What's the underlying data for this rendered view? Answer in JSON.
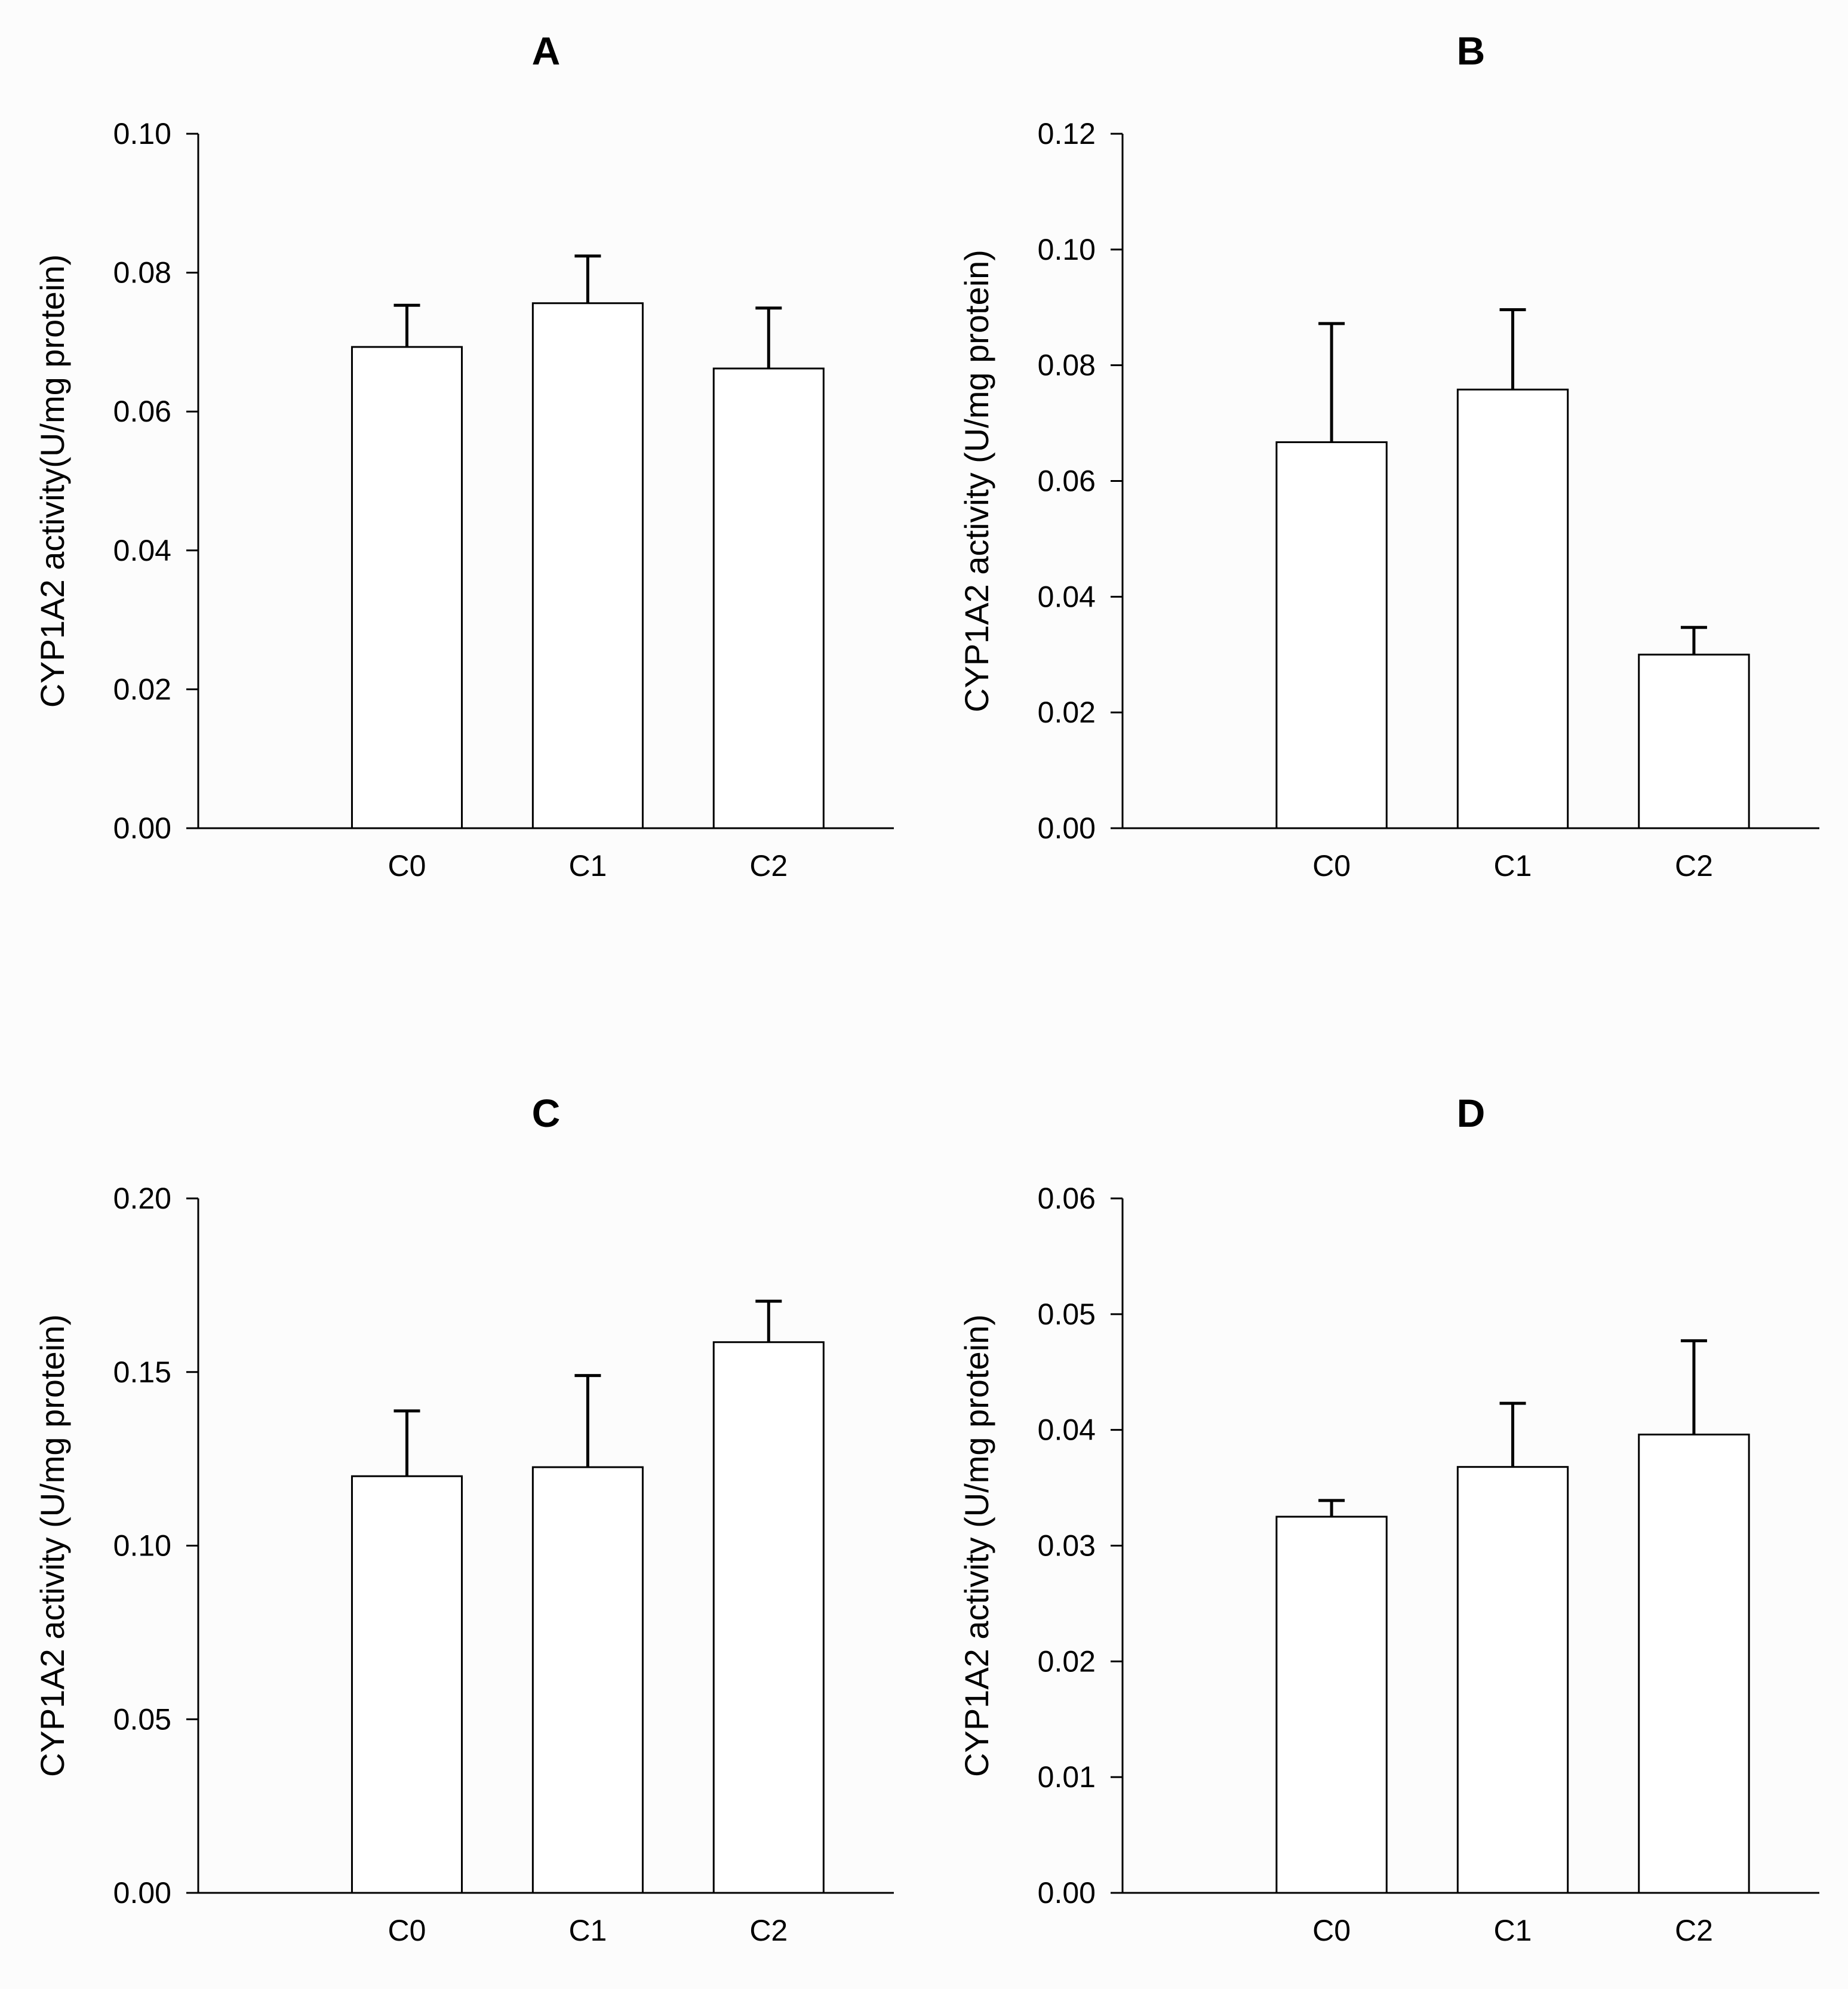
{
  "chart_data": [
    {
      "panel": "A",
      "type": "bar",
      "title": "A",
      "xlabel": "",
      "ylabel": "CYP1A2 activity(U/mg protein)",
      "categories": [
        "C0",
        "C1",
        "C2"
      ],
      "values": [
        0.0693,
        0.0756,
        0.0662
      ],
      "errors": [
        0.006,
        0.0068,
        0.0087
      ],
      "ylim": [
        0,
        0.1
      ],
      "yticks": [
        "0.00",
        "0.02",
        "0.04",
        "0.06",
        "0.08",
        "0.10"
      ],
      "grid": false
    },
    {
      "panel": "B",
      "type": "bar",
      "title": "B",
      "xlabel": "",
      "ylabel": "CYP1A2 activity (U/mg protein)",
      "categories": [
        "C0",
        "C1",
        "C2"
      ],
      "values": [
        0.0667,
        0.0758,
        0.03
      ],
      "errors": [
        0.0205,
        0.0138,
        0.0047
      ],
      "ylim": [
        0,
        0.12
      ],
      "yticks": [
        "0.00",
        "0.02",
        "0.04",
        "0.06",
        "0.08",
        "0.10",
        "0.12"
      ],
      "grid": false
    },
    {
      "panel": "C",
      "type": "bar",
      "title": "C",
      "xlabel": "",
      "ylabel": "CYP1A2 activity (U/mg protein)",
      "categories": [
        "C0",
        "C1",
        "C2"
      ],
      "values": [
        0.12,
        0.1226,
        0.1586
      ],
      "errors": [
        0.0188,
        0.0264,
        0.0118
      ],
      "ylim": [
        0,
        0.2
      ],
      "yticks": [
        "0.00",
        "0.05",
        "0.10",
        "0.15",
        "0.20"
      ],
      "grid": false
    },
    {
      "panel": "D",
      "type": "bar",
      "title": "D",
      "xlabel": "",
      "ylabel": "CYP1A2 activity (U/mg protein)",
      "categories": [
        "C0",
        "C1",
        "C2"
      ],
      "values": [
        0.0325,
        0.0368,
        0.0396
      ],
      "errors": [
        0.0014,
        0.0055,
        0.0081
      ],
      "ylim": [
        0,
        0.06
      ],
      "yticks": [
        "0.00",
        "0.01",
        "0.02",
        "0.03",
        "0.04",
        "0.05",
        "0.06"
      ],
      "grid": false
    }
  ]
}
